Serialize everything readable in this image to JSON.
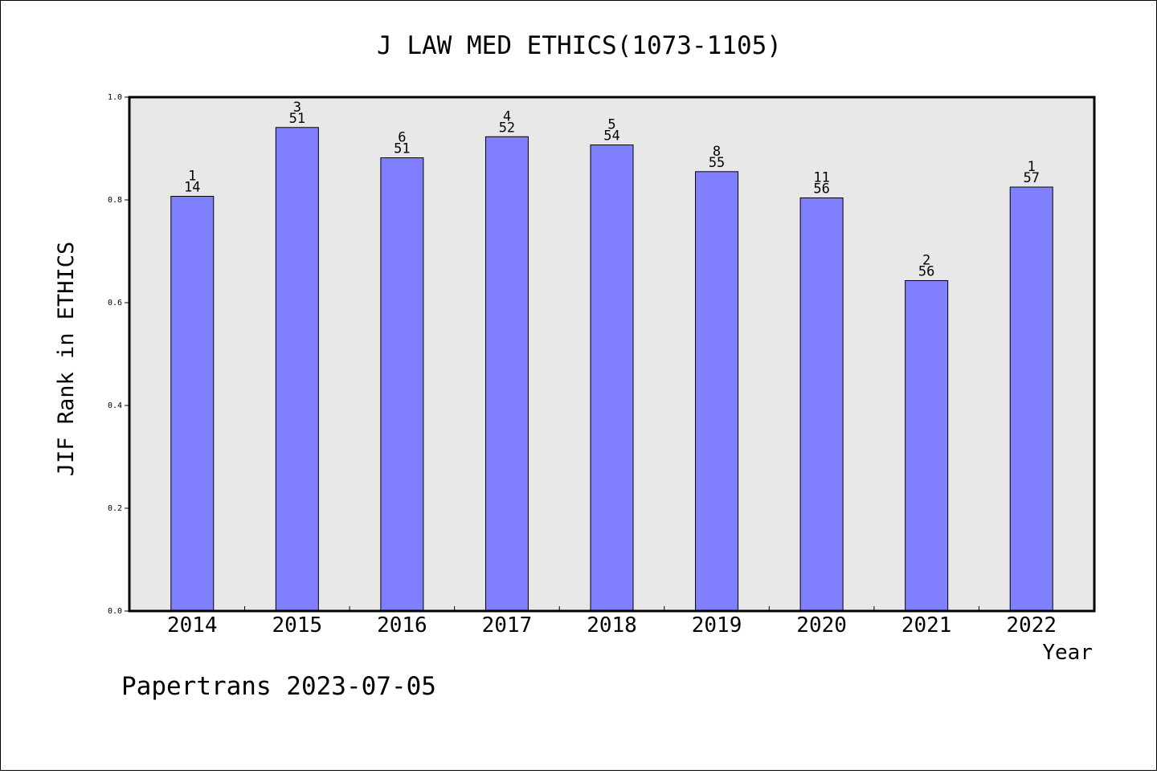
{
  "chart_data": {
    "type": "bar",
    "title": "J LAW MED ETHICS(1073-1105)",
    "xlabel": "Year",
    "ylabel": "JIF Rank in ETHICS",
    "ylim": [
      0,
      1.0
    ],
    "yticks": [
      "0.0",
      "0.2",
      "0.4",
      "0.6",
      "0.8",
      "1.0"
    ],
    "categories": [
      "2014",
      "2015",
      "2016",
      "2017",
      "2018",
      "2019",
      "2020",
      "2021",
      "2022"
    ],
    "values": [
      0.807,
      0.941,
      0.882,
      0.923,
      0.907,
      0.855,
      0.804,
      0.643,
      0.825
    ],
    "rank_labels": [
      {
        "rank": "1",
        "total": "14"
      },
      {
        "rank": "3",
        "total": "51"
      },
      {
        "rank": "6",
        "total": "51"
      },
      {
        "rank": "4",
        "total": "52"
      },
      {
        "rank": "5",
        "total": "54"
      },
      {
        "rank": "8",
        "total": "55"
      },
      {
        "rank": "11",
        "total": "56"
      },
      {
        "rank": "2",
        "total": "56"
      },
      {
        "rank": "1",
        "total": "57"
      }
    ],
    "grid": false,
    "bar_color": "#8080ff",
    "plot_background": "#e8e8e8"
  },
  "footer": {
    "credit": "Papertrans 2023-07-05"
  }
}
